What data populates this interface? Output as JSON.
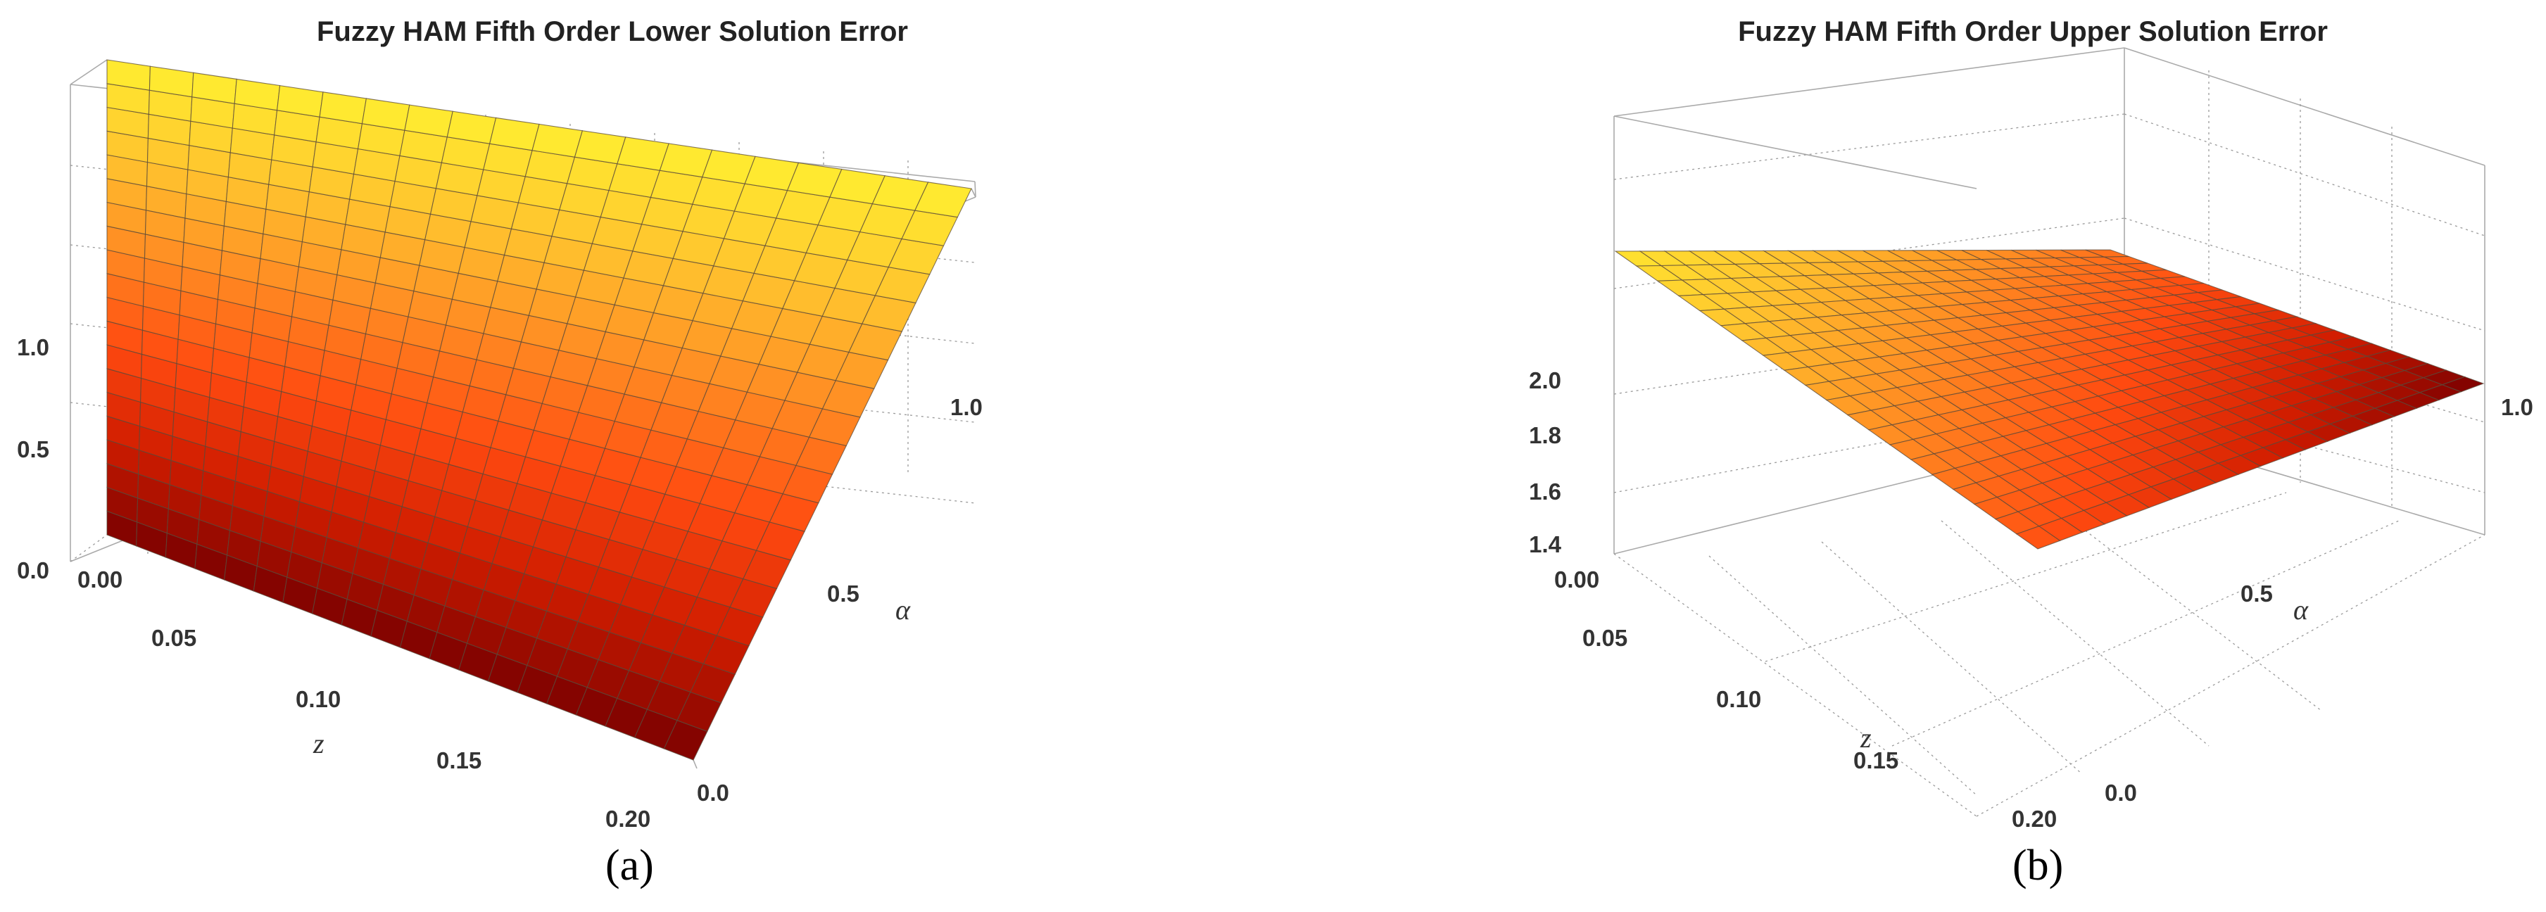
{
  "chart_data": [
    {
      "type": "surface",
      "title": "Fuzzy HAM Fifth Order Lower Solution Error",
      "caption": "(a)",
      "xlabel": "z",
      "ylabel": "α",
      "xlim": [
        0.0,
        0.2
      ],
      "ylim": [
        0.0,
        1.0
      ],
      "zlim": [
        0.0,
        1.0
      ],
      "x_ticks": [
        "0.00",
        "0.05",
        "0.10",
        "0.15",
        "0.20"
      ],
      "y_ticks": [
        "0.0",
        "0.5",
        "1.0"
      ],
      "z_ticks": [
        "0.0",
        "0.5",
        "1.0"
      ],
      "surface": {
        "z_at_alpha0": 0.0,
        "z_at_alpha1": 1.55,
        "varies_with": "alpha"
      },
      "colormap": [
        "#7a0000",
        "#d01c00",
        "#ff4a10",
        "#ff8a22",
        "#ffc42e",
        "#ffee30"
      ],
      "mesh_divisions": 20,
      "grid": true
    },
    {
      "type": "surface",
      "title": "Fuzzy HAM Fifth Order Upper Solution Error",
      "caption": "(b)",
      "xlabel": "z",
      "ylabel": "α",
      "xlim": [
        0.0,
        0.2
      ],
      "ylim": [
        0.0,
        1.0
      ],
      "zlim": [
        1.35,
        2.45
      ],
      "x_ticks": [
        "0.00",
        "0.05",
        "0.10",
        "0.15",
        "0.20"
      ],
      "y_ticks": [
        "0.0",
        "0.5",
        "1.0"
      ],
      "z_ticks": [
        "1.4",
        "1.6",
        "1.8",
        "2.0"
      ],
      "surface": {
        "corners": {
          "z0_a0": 2.08,
          "z0_a1": 2.0,
          "z1_a0": 1.42,
          "z1_a1": 2.0
        }
      },
      "colormap": [
        "#7a0000",
        "#d01c00",
        "#ff4a10",
        "#ff8a22",
        "#ffc42e",
        "#ffee30"
      ],
      "mesh_divisions": 20,
      "grid": true
    }
  ]
}
